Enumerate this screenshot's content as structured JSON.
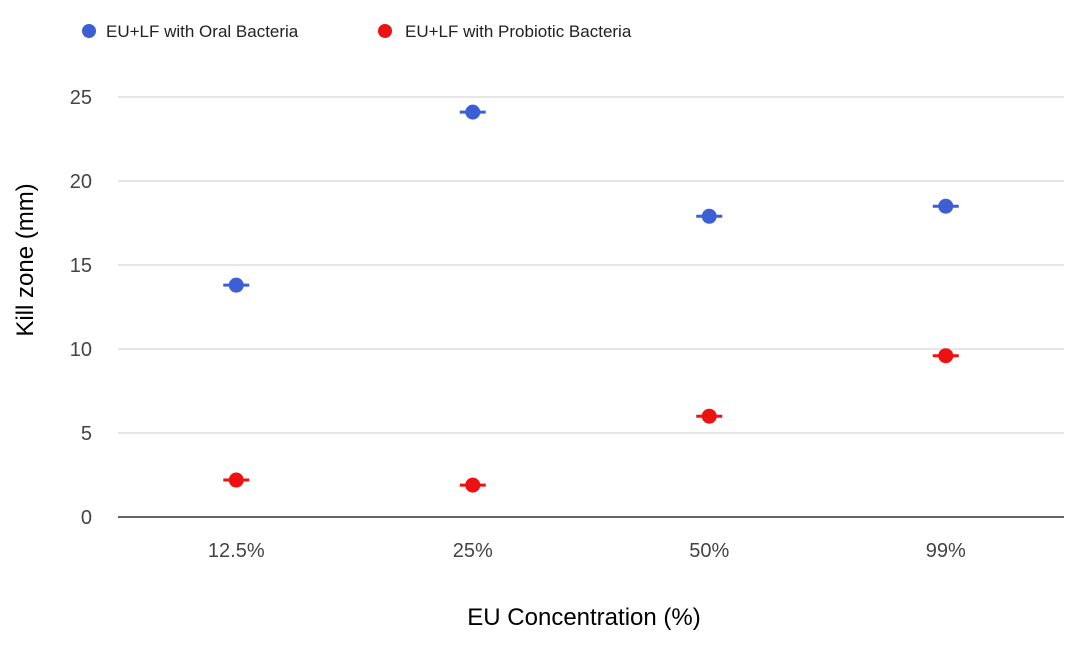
{
  "chart_data": {
    "type": "scatter",
    "title": "",
    "xlabel": "EU Concentration (%)",
    "ylabel": "Kill zone (mm)",
    "categories": [
      "12.5%",
      "25%",
      "50%",
      "99%"
    ],
    "ylim": [
      0,
      25
    ],
    "yticks": [
      0,
      5,
      10,
      15,
      20,
      25
    ],
    "grid": true,
    "legend_position": "top-left",
    "series": [
      {
        "name": "EU+LF with Oral Bacteria",
        "color": "#3c5fd6",
        "values": [
          13.8,
          24.1,
          17.9,
          18.5
        ]
      },
      {
        "name": "EU+LF with Probiotic Bacteria",
        "color": "#ee1111",
        "values": [
          2.2,
          1.9,
          6.0,
          9.6
        ]
      }
    ]
  }
}
